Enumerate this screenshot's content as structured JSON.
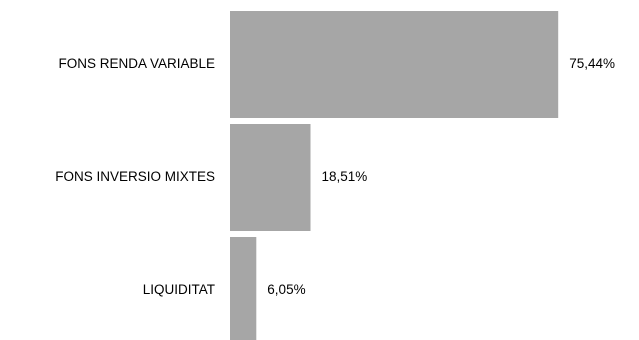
{
  "chart_data": {
    "type": "bar",
    "orientation": "horizontal",
    "categories": [
      "FONS RENDA VARIABLE",
      "FONS INVERSIO MIXTES",
      "LIQUIDITAT"
    ],
    "values": [
      75.44,
      18.51,
      6.05
    ],
    "value_labels": [
      "75,44%",
      "18,51%",
      "6,05%"
    ],
    "xlim": [
      0,
      100
    ],
    "grid": false,
    "legend": "none",
    "bar_color": "#a6a6a6"
  }
}
